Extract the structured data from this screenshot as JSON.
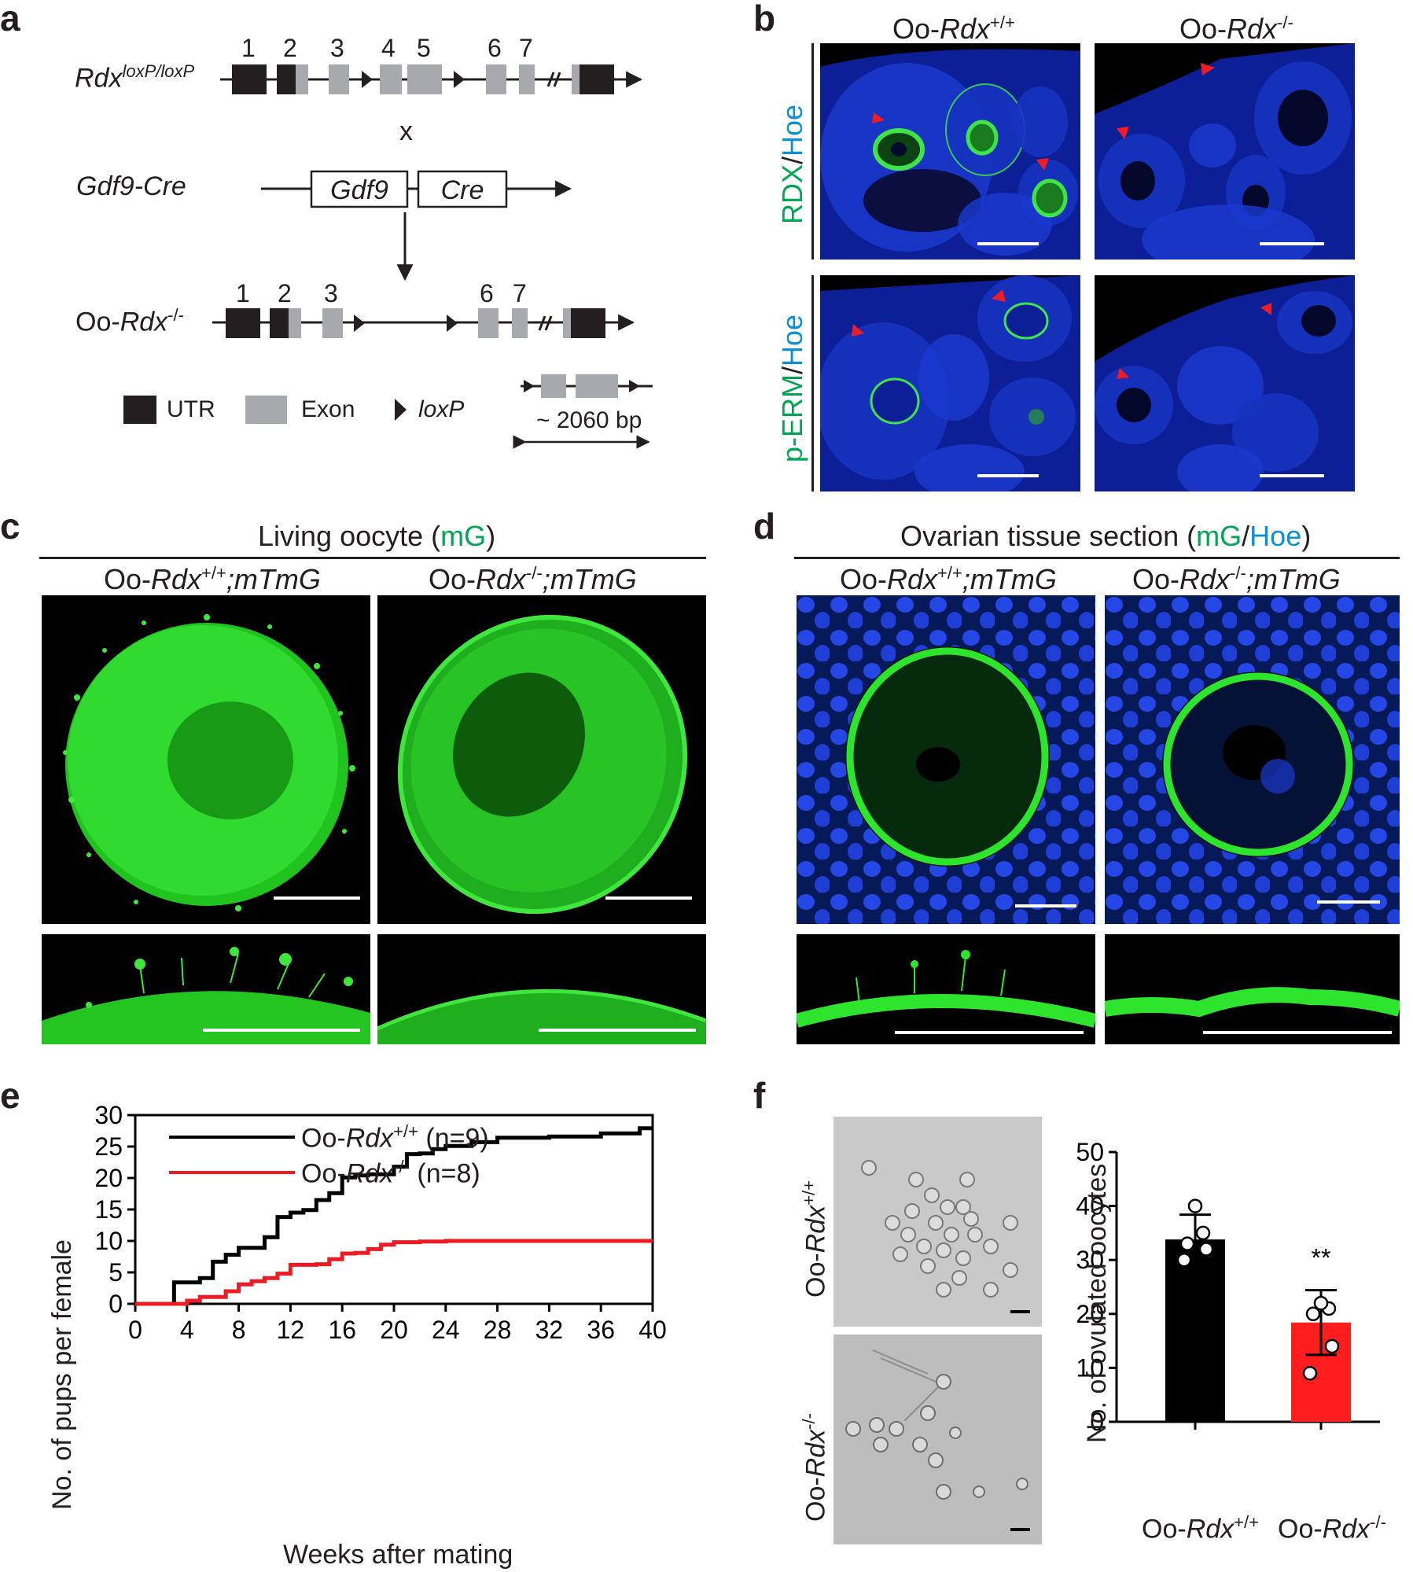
{
  "panel_labels": {
    "a": "a",
    "b": "b",
    "c": "c",
    "d": "d",
    "e": "e",
    "f": "f"
  },
  "panel_a": {
    "floxed": {
      "base": "Rdx",
      "sup": "loxP/loxP"
    },
    "exon_numbers_top": [
      "1",
      "2",
      "3",
      "4",
      "5",
      "6",
      "7"
    ],
    "cross": "x",
    "cre_line": "Gdf9-Cre",
    "box_gdf9": "Gdf9",
    "box_cre": "Cre",
    "ko": {
      "prefix": "Oo-",
      "italic": "Rdx",
      "sup": "-/-"
    },
    "exon_numbers_bottom": [
      "1",
      "2",
      "3",
      "6",
      "7"
    ],
    "legend": {
      "utr": "UTR",
      "exon": "Exon",
      "loxp": "loxP"
    },
    "deletion_size": "~ 2060 bp",
    "colors": {
      "utr": "#231f20",
      "exon": "#a7a9ac"
    }
  },
  "panel_b": {
    "col_wt": {
      "prefix": "Oo-",
      "italic": "Rdx",
      "sup": "+/+"
    },
    "col_ko": {
      "prefix": "Oo-",
      "italic": "Rdx",
      "sup": "-/-"
    },
    "row1": {
      "a": "RDX",
      "sep": "/",
      "b": "Hoe"
    },
    "row2": {
      "a": "p-ERM",
      "sep": "/",
      "b": "Hoe"
    }
  },
  "panel_c": {
    "title": {
      "a": "Living oocyte (",
      "b": "mG",
      ")": ")",
      "c": ")"
    },
    "col_wt": {
      "prefix": "Oo-",
      "italic": "Rdx",
      "sup": "+/+",
      "suffix": ";mTmG"
    },
    "col_ko": {
      "prefix": "Oo-",
      "italic": "Rdx",
      "sup": "-/-",
      "suffix": ";mTmG"
    }
  },
  "panel_d": {
    "title": {
      "a": "Ovarian tissue section (",
      "b": "mG",
      "sep": "/",
      "c": "Hoe",
      "d": ")"
    },
    "col_wt": {
      "prefix": "Oo-",
      "italic": "Rdx",
      "sup": "+/+",
      "suffix": ";mTmG"
    },
    "col_ko": {
      "prefix": "Oo-",
      "italic": "Rdx",
      "sup": "-/-",
      "suffix": ";mTmG"
    }
  },
  "panel_f_images": {
    "wt": {
      "prefix": "Oo-",
      "italic": "Rdx",
      "sup": "+/+"
    },
    "ko": {
      "prefix": "Oo-",
      "italic": "Rdx",
      "sup": "-/-"
    }
  },
  "colors": {
    "green": "#00a651",
    "blue": "#0b8fd6",
    "red": "#ed1c24",
    "black": "#000000",
    "micro_green": "#35e23a",
    "micro_blue": "#1d3fe0"
  },
  "chart_data": [
    {
      "type": "line",
      "panel": "e",
      "xlabel": "Weeks after mating",
      "ylabel": "No. of pups per female",
      "xlim": [
        0,
        40
      ],
      "ylim": [
        0,
        30
      ],
      "xticks": [
        "0",
        "4",
        "8",
        "12",
        "16",
        "20",
        "24",
        "28",
        "32",
        "36",
        "40"
      ],
      "yticks": [
        "0",
        "5",
        "10",
        "15",
        "20",
        "25",
        "30"
      ],
      "legend_position": "top-left",
      "series": [
        {
          "name_prefix": "Oo-",
          "name_italic": "Rdx",
          "name_sup": "+/+",
          "name_n": "(n=9)",
          "color": "#000000",
          "x": [
            0,
            3,
            5,
            6,
            7,
            8,
            10,
            11,
            12,
            13,
            14,
            15,
            16,
            17,
            18,
            20,
            21,
            22,
            23,
            24,
            26,
            28,
            32,
            36,
            39,
            40
          ],
          "y": [
            0,
            3.4,
            4.1,
            6.7,
            7.8,
            8.9,
            10.6,
            13.8,
            14.5,
            14.9,
            16.5,
            17.6,
            20.1,
            20.4,
            20.6,
            21.8,
            23.8,
            23.9,
            24.6,
            25.1,
            25.7,
            26.4,
            26.6,
            27.1,
            27.9,
            27.9
          ]
        },
        {
          "name_prefix": "Oo-",
          "name_italic": "Rdx",
          "name_sup": "-/-",
          "name_n": "(n=8)",
          "color": "#ed1c24",
          "x": [
            0,
            4,
            5,
            7,
            8,
            9,
            10,
            11,
            12,
            14,
            15,
            16,
            17,
            18,
            19,
            20,
            22,
            24,
            28,
            32,
            36,
            40
          ],
          "y": [
            0,
            0.5,
            1.1,
            2.0,
            3.1,
            3.6,
            4.1,
            4.8,
            6.2,
            6.3,
            7.1,
            8.0,
            8.1,
            8.7,
            9.4,
            9.8,
            9.9,
            10.0,
            10.0,
            10.0,
            10.0,
            10.0
          ]
        }
      ]
    },
    {
      "type": "bar",
      "panel": "f",
      "ylabel": "No. of ovulated oocytes",
      "ylim": [
        0,
        50
      ],
      "yticks": [
        "0",
        "10",
        "20",
        "30",
        "40",
        "50"
      ],
      "categories": [
        {
          "prefix": "Oo-",
          "italic": "Rdx",
          "sup": "+/+"
        },
        {
          "prefix": "Oo-",
          "italic": "Rdx",
          "sup": "-/-"
        }
      ],
      "values": [
        33.8,
        18.4
      ],
      "errors": [
        4.6,
        6.0
      ],
      "points": [
        [
          30,
          32,
          33,
          35,
          40
        ],
        [
          9,
          14,
          20,
          21,
          22
        ]
      ],
      "colors": [
        "#000000",
        "#ff1d1d"
      ],
      "significance": "**"
    }
  ]
}
